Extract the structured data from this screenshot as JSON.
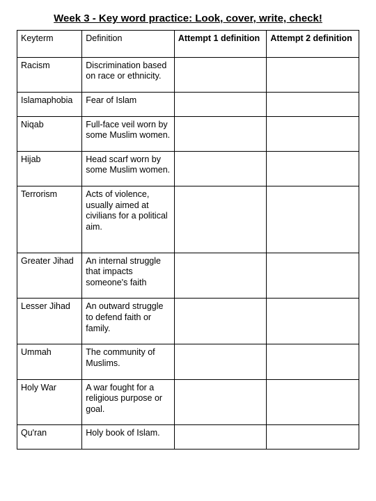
{
  "title": "Week 3 - Key word practice: Look, cover, write, check!",
  "columns": {
    "keyterm": "Keyterm",
    "definition": "Definition",
    "attempt1": "Attempt 1 definition",
    "attempt2": "Attempt 2 definition"
  },
  "rows": [
    {
      "keyterm": "Racism",
      "definition": "Discrimination based on race or ethnicity.",
      "attempt1": "",
      "attempt2": ""
    },
    {
      "keyterm": "Islamaphobia",
      "definition": "Fear of Islam",
      "attempt1": "",
      "attempt2": ""
    },
    {
      "keyterm": "Niqab",
      "definition": "Full-face veil worn by some Muslim women.",
      "attempt1": "",
      "attempt2": ""
    },
    {
      "keyterm": "Hijab",
      "definition": "Head scarf worn by some Muslim women.",
      "attempt1": "",
      "attempt2": ""
    },
    {
      "keyterm": "Terrorism",
      "definition": "Acts of violence, usually aimed at civilians for a political aim.",
      "attempt1": "",
      "attempt2": ""
    },
    {
      "keyterm": "Greater Jihad",
      "definition": "An internal struggle that impacts someone's faith",
      "attempt1": "",
      "attempt2": ""
    },
    {
      "keyterm": "Lesser Jihad",
      "definition": "An outward struggle to defend faith or family.",
      "attempt1": "",
      "attempt2": ""
    },
    {
      "keyterm": "Ummah",
      "definition": "The community of Muslims.",
      "attempt1": "",
      "attempt2": ""
    },
    {
      "keyterm": "Holy War",
      "definition": "A war fought for a religious purpose or goal.",
      "attempt1": "",
      "attempt2": ""
    },
    {
      "keyterm": "Qu'ran",
      "definition": "Holy book of Islam.",
      "attempt1": "",
      "attempt2": ""
    }
  ],
  "style": {
    "background_color": "#ffffff",
    "text_color": "#000000",
    "border_color": "#000000",
    "font_family": "Arial",
    "title_fontsize": 15,
    "cell_fontsize": 12.5
  }
}
